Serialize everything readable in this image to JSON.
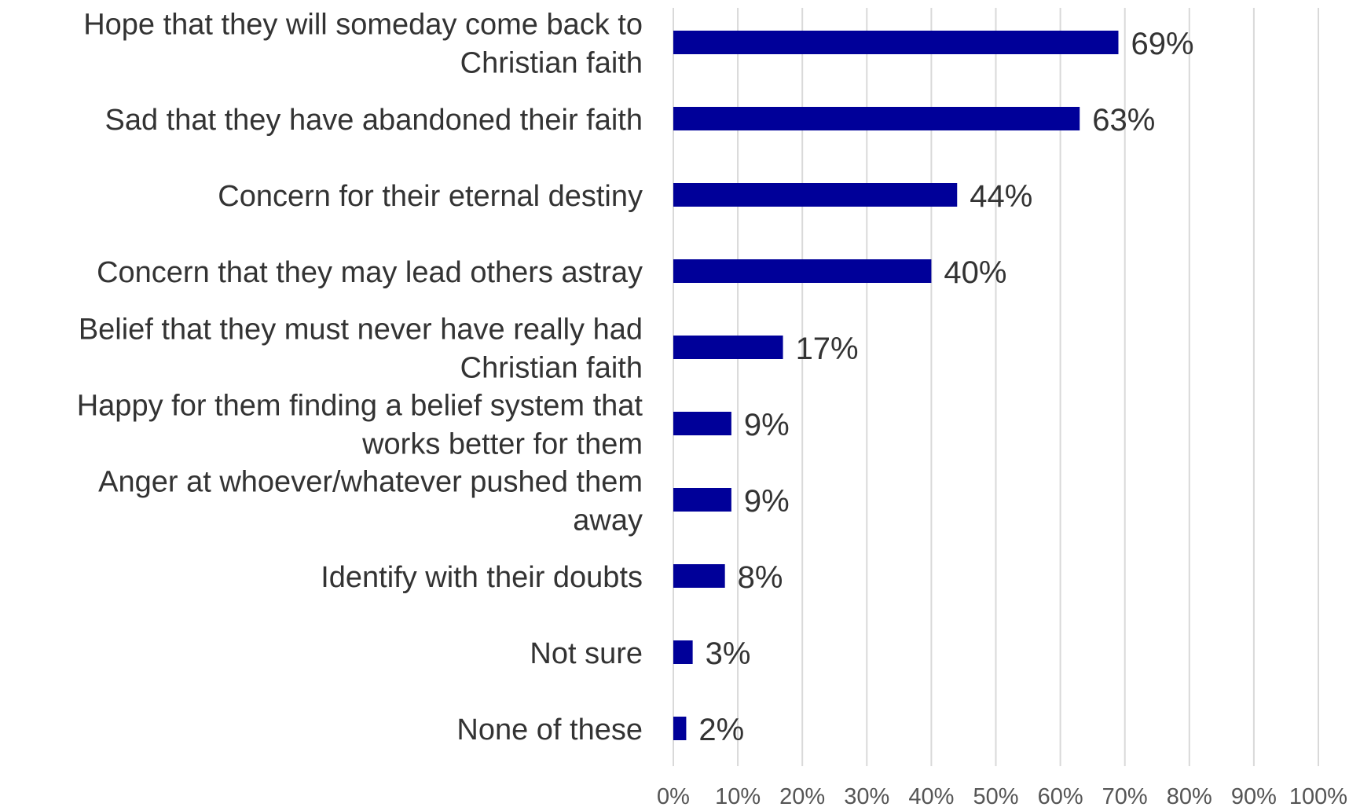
{
  "chart_data": {
    "type": "bar",
    "orientation": "horizontal",
    "title": "",
    "xlabel": "",
    "ylabel": "",
    "xlim": [
      0,
      100
    ],
    "grid": "vertical",
    "legend": "none",
    "bar_color": "#000099",
    "text_color": "#333333",
    "grid_color": "#d9d9d9",
    "categories": [
      "Hope that they will someday come back to Christian faith",
      "Sad that they have abandoned their faith",
      "Concern for their eternal destiny",
      "Concern that they may lead others astray",
      "Belief that they must never have really had Christian faith",
      "Happy for them finding a belief system that works better for them",
      "Anger at whoever/whatever pushed them away",
      "Identify with their doubts",
      "Not sure",
      "None of these"
    ],
    "category_lines": [
      [
        "Hope that they will someday come back to",
        "Christian faith"
      ],
      [
        "Sad that they have abandoned their faith"
      ],
      [
        "Concern for their eternal destiny"
      ],
      [
        "Concern that they may lead others astray"
      ],
      [
        "Belief that they must never have really had",
        "Christian faith"
      ],
      [
        "Happy for them finding a belief system that",
        "works better for them"
      ],
      [
        "Anger at whoever/whatever pushed them",
        "away"
      ],
      [
        "Identify with their doubts"
      ],
      [
        "Not sure"
      ],
      [
        "None of these"
      ]
    ],
    "values": [
      69,
      63,
      44,
      40,
      17,
      9,
      9,
      8,
      3,
      2
    ],
    "value_labels": [
      "69%",
      "63%",
      "44%",
      "40%",
      "17%",
      "9%",
      "9%",
      "8%",
      "3%",
      "2%"
    ],
    "x_ticks": [
      "0%",
      "10%",
      "20%",
      "30%",
      "40%",
      "50%",
      "60%",
      "70%",
      "80%",
      "90%",
      "100%"
    ]
  }
}
